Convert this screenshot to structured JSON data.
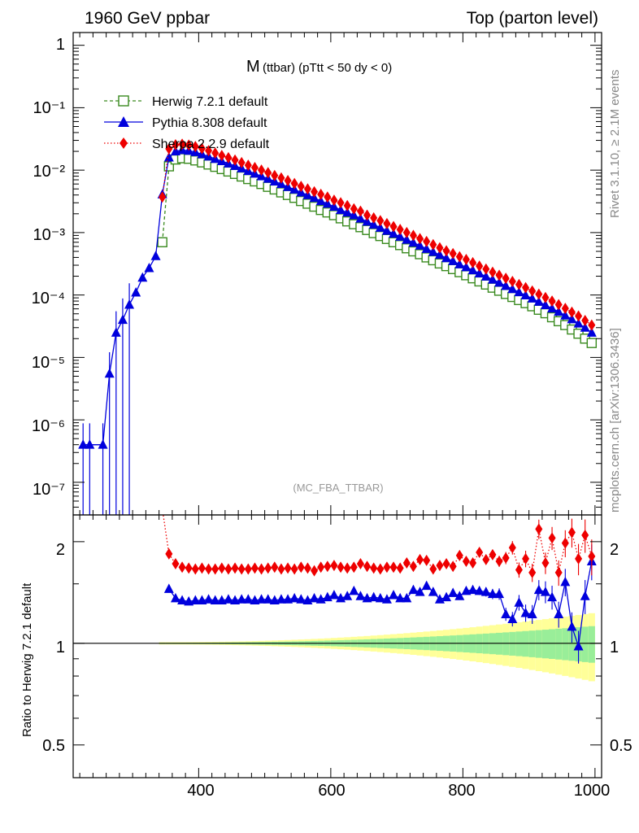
{
  "header": {
    "left": "1960 GeV ppbar",
    "right": "Top (parton level)"
  },
  "side_labels": {
    "rivet": "Rivet 3.1.10, ≥ 2.1M events",
    "mcplots": "mcplots.cern.ch [arXiv:1306.3436]"
  },
  "plot": {
    "title_main": "M",
    "title_sub": "(ttbar)  (pTtt < 50 dy < 0)",
    "watermark": "(MC_FBA_TTBAR)",
    "ratio_ylabel": "Ratio to Herwig 7.2.1 default"
  },
  "legend": [
    {
      "label": "Herwig 7.2.1 default",
      "color": "#3a8a1f",
      "marker": "open-square",
      "line": "dashed"
    },
    {
      "label": "Pythia 8.308 default",
      "color": "#0000dd",
      "marker": "triangle",
      "line": "solid"
    },
    {
      "label": "Sherpa 2.2.9 default",
      "color": "#ee0000",
      "marker": "diamond",
      "line": "dotted"
    }
  ],
  "main_axis": {
    "ytick_labels": [
      "1",
      "10⁻¹",
      "10⁻²",
      "10⁻³",
      "10⁻⁴",
      "10⁻⁵",
      "10⁻⁶",
      "10⁻⁷"
    ]
  },
  "ratio_axis": {
    "ytick_labels": [
      "2",
      "1",
      "0.5"
    ]
  },
  "chart_data": {
    "type": "line",
    "x_label": "",
    "x_range": [
      210,
      1010
    ],
    "x_tick_labels": [
      "400",
      "600",
      "800",
      "1000"
    ],
    "main": {
      "y_scale": "log",
      "y_range": [
        3e-08,
        1.6
      ],
      "series": [
        {
          "name": "Herwig 7.2.1 default",
          "x": [
            345,
            355,
            365,
            375,
            385,
            395,
            405,
            415,
            425,
            435,
            445,
            455,
            465,
            475,
            485,
            495,
            505,
            515,
            525,
            535,
            545,
            555,
            565,
            575,
            585,
            595,
            605,
            615,
            625,
            635,
            645,
            655,
            665,
            675,
            685,
            695,
            705,
            715,
            725,
            735,
            745,
            755,
            765,
            775,
            785,
            795,
            805,
            815,
            825,
            835,
            845,
            855,
            865,
            875,
            885,
            895,
            905,
            915,
            925,
            935,
            945,
            955,
            965,
            975,
            985,
            995
          ],
          "y": [
            0.0007,
            0.0115,
            0.0148,
            0.0155,
            0.0152,
            0.0143,
            0.0133,
            0.0123,
            0.0113,
            0.0104,
            0.0095,
            0.0087,
            0.0079,
            0.0072,
            0.0066,
            0.006,
            0.0054,
            0.0049,
            0.0044,
            0.004,
            0.0036,
            0.0032,
            0.0029,
            0.0026,
            0.0023,
            0.0021,
            0.0019,
            0.00169,
            0.00151,
            0.00136,
            0.00122,
            0.0011,
            0.00098,
            0.00088,
            0.00079,
            0.0007,
            0.00063,
            0.00056,
            0.0005,
            0.00045,
            0.0004,
            0.00036,
            0.00032,
            0.00029,
            0.00026,
            0.000232,
            0.000207,
            0.000185,
            0.000165,
            0.000147,
            0.000131,
            0.000117,
            0.000104,
            9.3e-05,
            8.3e-05,
            7.4e-05,
            6.6e-05,
            5.8e-05,
            5.1e-05,
            4.4e-05,
            3.8e-05,
            3.3e-05,
            2.8e-05,
            2.4e-05,
            2e-05,
            1.7e-05
          ]
        },
        {
          "name": "Pythia 8.308 default",
          "x": [
            225,
            235,
            255,
            265,
            275,
            285,
            295,
            305,
            315,
            325,
            335,
            345,
            355,
            365,
            375,
            385,
            395,
            405,
            415,
            425,
            435,
            445,
            455,
            465,
            475,
            485,
            495,
            505,
            515,
            525,
            535,
            545,
            555,
            565,
            575,
            585,
            595,
            605,
            615,
            625,
            635,
            645,
            655,
            665,
            675,
            685,
            695,
            705,
            715,
            725,
            735,
            745,
            755,
            765,
            775,
            785,
            795,
            805,
            815,
            825,
            835,
            845,
            855,
            865,
            875,
            885,
            895,
            905,
            915,
            925,
            935,
            945,
            955,
            965,
            975,
            985,
            995
          ],
          "y": [
            4e-07,
            4e-07,
            4e-07,
            5.5e-06,
            2.5e-05,
            4e-05,
            7e-05,
            0.00011,
            0.00019,
            0.00027,
            0.00042,
            0.0041,
            0.016,
            0.02,
            0.021,
            0.0205,
            0.0195,
            0.018,
            0.0166,
            0.0152,
            0.014,
            0.0128,
            0.0117,
            0.0107,
            0.0097,
            0.0088,
            0.008,
            0.0073,
            0.0066,
            0.006,
            0.0054,
            0.0049,
            0.0044,
            0.004,
            0.0036,
            0.0032,
            0.0029,
            0.0026,
            0.0023,
            0.0021,
            0.0019,
            0.00168,
            0.0015,
            0.00134,
            0.0012,
            0.00107,
            0.00096,
            0.00086,
            0.00077,
            0.00069,
            0.00062,
            0.00055,
            0.00049,
            0.00044,
            0.00039,
            0.00035,
            0.00031,
            0.00028,
            0.00025,
            0.000222,
            0.000198,
            0.000177,
            0.000158,
            0.00014,
            0.000125,
            0.000111,
            9.9e-05,
            8.8e-05,
            7.8e-05,
            6.9e-05,
            6.1e-05,
            5.4e-05,
            4.7e-05,
            4.1e-05,
            3.5e-05,
            3e-05,
            2.5e-05
          ]
        },
        {
          "name": "Sherpa 2.2.9 default",
          "x": [
            345,
            355,
            365,
            375,
            385,
            395,
            405,
            415,
            425,
            435,
            445,
            455,
            465,
            475,
            485,
            495,
            505,
            515,
            525,
            535,
            545,
            555,
            565,
            575,
            585,
            595,
            605,
            615,
            625,
            635,
            645,
            655,
            665,
            675,
            685,
            695,
            705,
            715,
            725,
            735,
            745,
            755,
            765,
            775,
            785,
            795,
            805,
            815,
            825,
            835,
            845,
            855,
            865,
            875,
            885,
            895,
            905,
            915,
            925,
            935,
            945,
            955,
            965,
            975,
            985,
            995
          ],
          "y": [
            0.0037,
            0.022,
            0.0255,
            0.026,
            0.0252,
            0.0239,
            0.0222,
            0.0205,
            0.0188,
            0.0172,
            0.0158,
            0.0145,
            0.0132,
            0.012,
            0.011,
            0.01,
            0.0091,
            0.0082,
            0.0075,
            0.0068,
            0.0061,
            0.0055,
            0.005,
            0.0045,
            0.0041,
            0.0037,
            0.0033,
            0.003,
            0.0027,
            0.0024,
            0.0022,
            0.0019,
            0.00172,
            0.00155,
            0.00139,
            0.00125,
            0.00112,
            0.001,
            0.0009,
            0.0008,
            0.00072,
            0.00064,
            0.00057,
            0.00051,
            0.00046,
            0.00041,
            0.00037,
            0.00033,
            0.00029,
            0.00026,
            0.000232,
            0.000207,
            0.000185,
            0.000165,
            0.000147,
            0.000131,
            0.000116,
            0.000103,
            9.1e-05,
            8e-05,
            7e-05,
            6.1e-05,
            5.3e-05,
            4.6e-05,
            3.9e-05,
            3.3e-05
          ]
        }
      ]
    },
    "ratio": {
      "y_scale": "log",
      "y_range": [
        0.4,
        2.4
      ],
      "reference": "Herwig 7.2.1 default",
      "series": [
        {
          "name": "Pythia 8.308 default",
          "x": [
            355,
            365,
            375,
            385,
            395,
            405,
            415,
            425,
            435,
            445,
            455,
            465,
            475,
            485,
            495,
            505,
            515,
            525,
            535,
            545,
            555,
            565,
            575,
            585,
            595,
            605,
            615,
            625,
            635,
            645,
            655,
            665,
            675,
            685,
            695,
            705,
            715,
            725,
            735,
            745,
            755,
            765,
            775,
            785,
            795,
            805,
            815,
            825,
            835,
            845,
            855,
            865,
            875,
            885,
            895,
            905,
            915,
            925,
            935,
            945,
            955,
            965,
            975,
            985,
            995
          ],
          "y": [
            1.45,
            1.36,
            1.34,
            1.33,
            1.34,
            1.34,
            1.35,
            1.34,
            1.34,
            1.35,
            1.34,
            1.35,
            1.35,
            1.34,
            1.35,
            1.35,
            1.34,
            1.35,
            1.35,
            1.36,
            1.35,
            1.34,
            1.36,
            1.35,
            1.37,
            1.39,
            1.36,
            1.38,
            1.43,
            1.38,
            1.36,
            1.37,
            1.36,
            1.35,
            1.39,
            1.36,
            1.36,
            1.44,
            1.42,
            1.48,
            1.42,
            1.35,
            1.37,
            1.41,
            1.38,
            1.43,
            1.44,
            1.43,
            1.42,
            1.4,
            1.4,
            1.22,
            1.18,
            1.32,
            1.23,
            1.22,
            1.44,
            1.42,
            1.37,
            1.22,
            1.52,
            1.12,
            0.98,
            1.38,
            1.75
          ]
        },
        {
          "name": "Sherpa 2.2.9 default",
          "x": [
            345,
            355,
            365,
            375,
            385,
            395,
            405,
            415,
            425,
            435,
            445,
            455,
            465,
            475,
            485,
            495,
            505,
            515,
            525,
            535,
            545,
            555,
            565,
            575,
            585,
            595,
            605,
            615,
            625,
            635,
            645,
            655,
            665,
            675,
            685,
            695,
            705,
            715,
            725,
            735,
            745,
            755,
            765,
            775,
            785,
            795,
            805,
            815,
            825,
            835,
            845,
            855,
            865,
            875,
            885,
            895,
            905,
            915,
            925,
            935,
            945,
            955,
            965,
            975,
            985,
            995
          ],
          "y": [
            2.5,
            1.84,
            1.72,
            1.68,
            1.67,
            1.66,
            1.67,
            1.66,
            1.66,
            1.67,
            1.66,
            1.67,
            1.66,
            1.66,
            1.67,
            1.66,
            1.67,
            1.68,
            1.66,
            1.67,
            1.66,
            1.68,
            1.67,
            1.64,
            1.68,
            1.69,
            1.7,
            1.68,
            1.67,
            1.68,
            1.72,
            1.69,
            1.67,
            1.66,
            1.68,
            1.68,
            1.67,
            1.73,
            1.69,
            1.77,
            1.76,
            1.66,
            1.7,
            1.72,
            1.69,
            1.82,
            1.75,
            1.73,
            1.86,
            1.77,
            1.83,
            1.75,
            1.79,
            1.92,
            1.65,
            1.78,
            1.62,
            2.18,
            1.73,
            2.05,
            1.62,
            1.98,
            2.13,
            1.78,
            2.09,
            1.81
          ]
        }
      ],
      "bands": [
        {
          "name": "Herwig stat. uncertainty (inner)",
          "color": "#99ee99"
        },
        {
          "name": "Herwig total uncertainty (outer)",
          "color": "#ffff99"
        }
      ]
    }
  }
}
